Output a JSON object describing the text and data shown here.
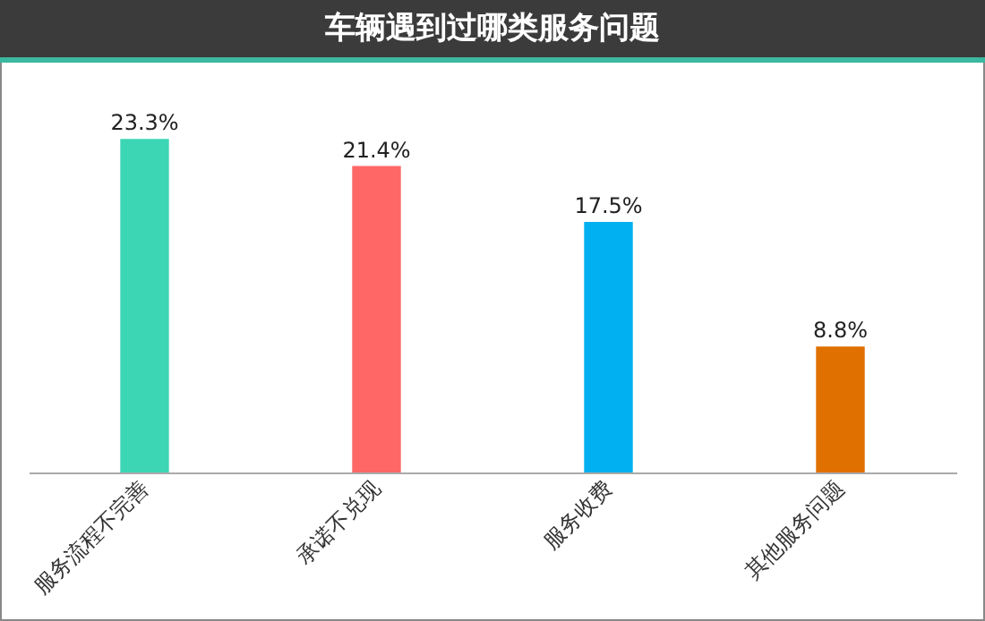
{
  "chart_data": {
    "type": "bar",
    "title": "车辆遇到过哪类服务问题",
    "categories": [
      "服务流程不完善",
      "承诺不兑现",
      "服务收费",
      "其他服务问题"
    ],
    "values": [
      23.3,
      21.4,
      17.5,
      8.8
    ],
    "colors": [
      "#3dd6b5",
      "#ff6666",
      "#00b0f0",
      "#e07000"
    ],
    "value_labels": [
      "23.3%",
      "21.4%",
      "17.5%",
      "8.8%"
    ]
  }
}
